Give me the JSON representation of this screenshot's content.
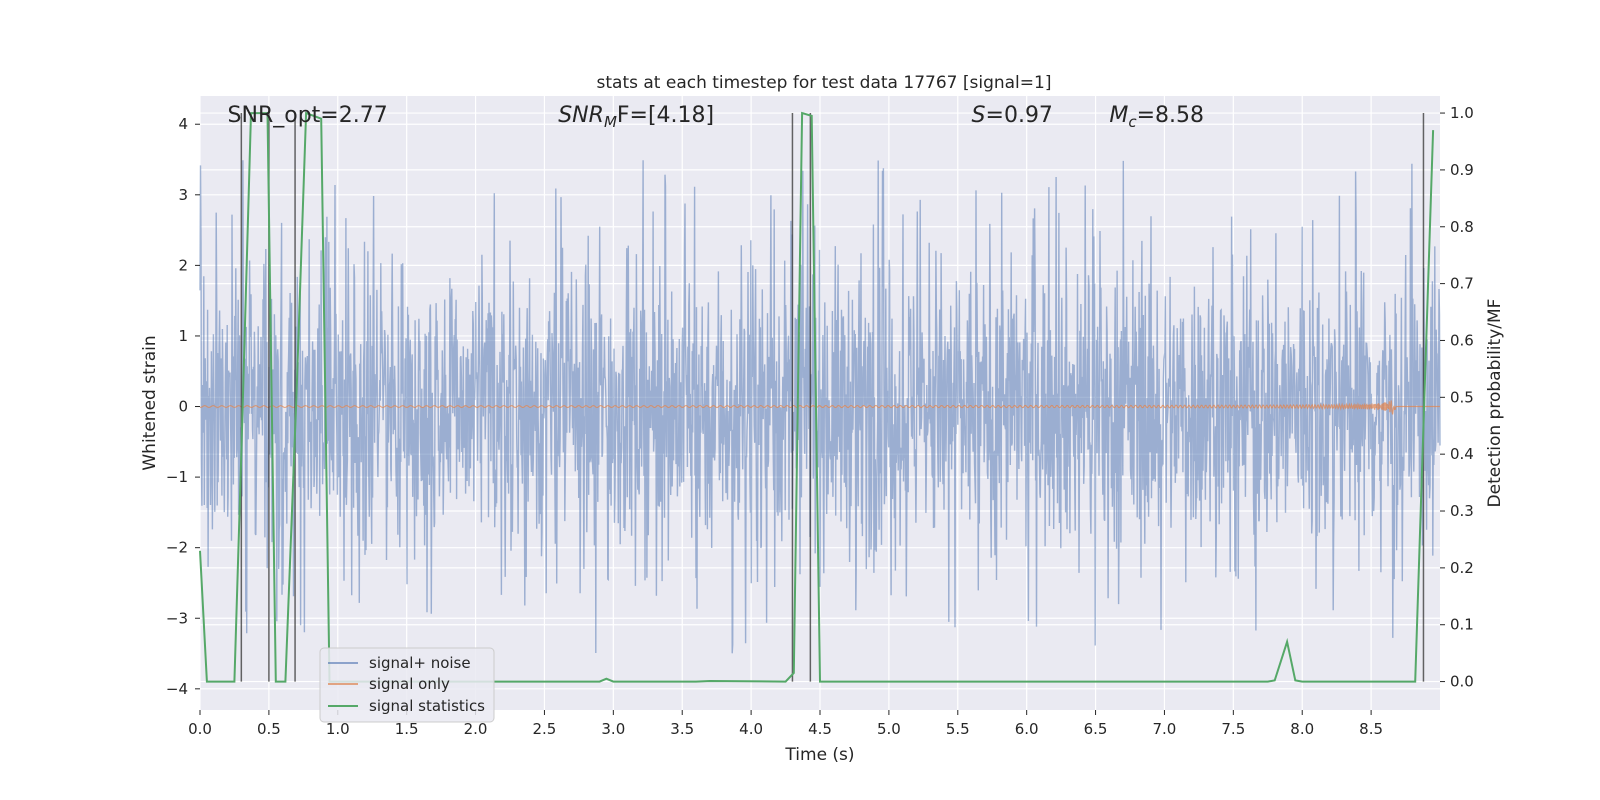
{
  "chart_data": {
    "type": "line",
    "title": "stats at each timestep for test data 17767 [signal=1]",
    "xlabel": "Time (s)",
    "ylabel": "Whitened strain",
    "y2label": "Detection probability/MF",
    "xlim": [
      0,
      9.0
    ],
    "ylim": [
      -4.3,
      4.4
    ],
    "y2lim": [
      -0.05,
      1.03
    ],
    "xticks": [
      "0.0",
      "0.5",
      "1.0",
      "1.5",
      "2.0",
      "2.5",
      "3.0",
      "3.5",
      "4.0",
      "4.5",
      "5.0",
      "5.5",
      "6.0",
      "6.5",
      "7.0",
      "7.5",
      "8.0",
      "8.5"
    ],
    "yticks": [
      "4",
      "3",
      "2",
      "1",
      "0",
      "−1",
      "−2",
      "−3",
      "−4"
    ],
    "y2ticks": [
      "1.0",
      "0.9",
      "0.8",
      "0.7",
      "0.6",
      "0.5",
      "0.4",
      "0.3",
      "0.2",
      "0.1",
      "0.0"
    ],
    "grid": true,
    "legend_position": "lower-left",
    "annotations": [
      {
        "label": "SNR_opt=2.77",
        "x": 0.2,
        "y": 4.1
      },
      {
        "label_main": "SNR",
        "label_sub": "M",
        "label_rest": "F=[4.18]",
        "x": 2.6,
        "y": 4.1
      },
      {
        "label_main": "S",
        "label_rest": "=0.97",
        "x": 5.6,
        "y": 4.1
      },
      {
        "label_main": "M",
        "label_sub": "c",
        "label_rest": "=8.58",
        "x": 6.6,
        "y": 4.1
      }
    ],
    "vertical_lines_x": [
      0.3,
      0.5,
      0.69,
      4.3,
      4.43,
      8.88
    ],
    "series": [
      {
        "name": "signal+ noise",
        "color": "#4c72b0",
        "description_envelope": {
          "typical_amplitude": 1.6,
          "peak_max": 3.5,
          "peak_min": -3.8
        }
      },
      {
        "name": "signal only",
        "color": "#dd8452",
        "chirp_end_x": 8.68,
        "chirp_max_amplitude": 0.45
      },
      {
        "name": "signal statistics",
        "color": "#55a868",
        "x": [
          0.0,
          0.05,
          0.25,
          0.3,
          0.37,
          0.49,
          0.55,
          0.62,
          0.7,
          0.77,
          0.88,
          0.94,
          1.8,
          2.9,
          2.95,
          3.0,
          3.6,
          3.7,
          4.25,
          4.31,
          4.37,
          4.44,
          4.5,
          7.75,
          7.8,
          7.89,
          7.95,
          8.0,
          8.3,
          8.82,
          8.86,
          8.95
        ],
        "values": [
          0.23,
          0.0,
          0.0,
          0.4,
          1.0,
          1.0,
          0.0,
          0.0,
          0.5,
          1.0,
          0.99,
          0.0,
          0.0,
          0.0,
          0.005,
          0.0,
          0.0,
          0.001,
          0.0,
          0.015,
          1.0,
          0.995,
          0.0,
          0.0,
          0.002,
          0.07,
          0.002,
          0.0,
          0.0,
          0.0,
          0.3,
          0.97
        ]
      }
    ]
  }
}
